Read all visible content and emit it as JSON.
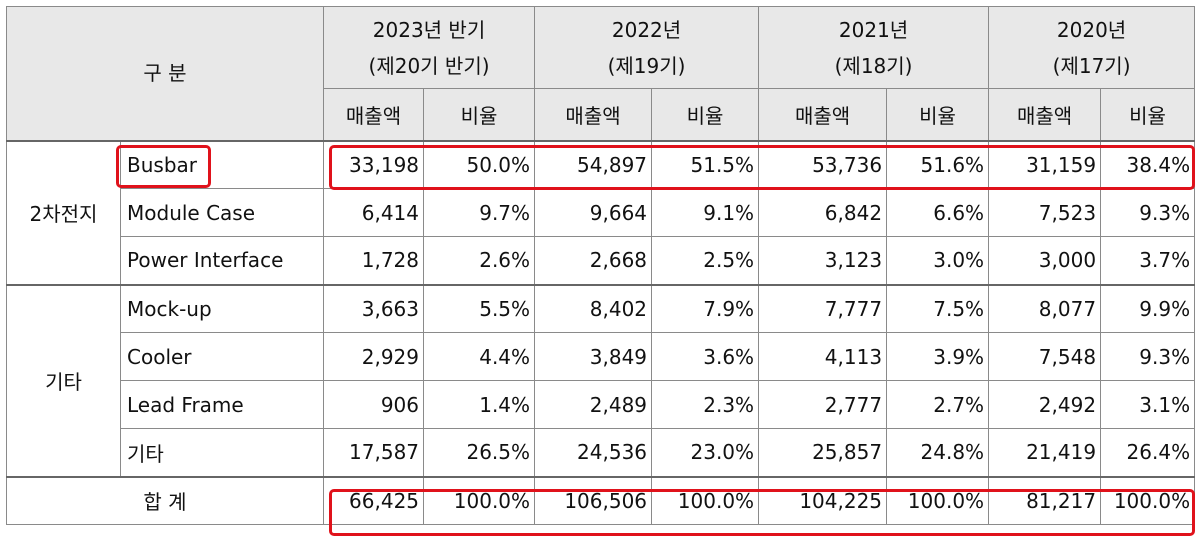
{
  "header": {
    "category_label": "구 분",
    "periods": [
      {
        "line1": "2023년 반기",
        "line2": "(제20기 반기)"
      },
      {
        "line1": "2022년",
        "line2": "(제19기)"
      },
      {
        "line1": "2021년",
        "line2": "(제18기)"
      },
      {
        "line1": "2020년",
        "line2": "(제17기)"
      }
    ],
    "sub": {
      "sales": "매출액",
      "ratio": "비율"
    }
  },
  "groups": [
    {
      "name": "2차전지",
      "rows": [
        {
          "item": "Busbar",
          "values": [
            "33,198",
            "50.0%",
            "54,897",
            "51.5%",
            "53,736",
            "51.6%",
            "31,159",
            "38.4%"
          ]
        },
        {
          "item": "Module Case",
          "values": [
            "6,414",
            "9.7%",
            "9,664",
            "9.1%",
            "6,842",
            "6.6%",
            "7,523",
            "9.3%"
          ]
        },
        {
          "item": "Power Interface",
          "values": [
            "1,728",
            "2.6%",
            "2,668",
            "2.5%",
            "3,123",
            "3.0%",
            "3,000",
            "3.7%"
          ]
        }
      ]
    },
    {
      "name": "기타",
      "rows": [
        {
          "item": "Mock-up",
          "values": [
            "3,663",
            "5.5%",
            "8,402",
            "7.9%",
            "7,777",
            "7.5%",
            "8,077",
            "9.9%"
          ]
        },
        {
          "item": "Cooler",
          "values": [
            "2,929",
            "4.4%",
            "3,849",
            "3.6%",
            "4,113",
            "3.9%",
            "7,548",
            "9.3%"
          ]
        },
        {
          "item": "Lead Frame",
          "values": [
            "906",
            "1.4%",
            "2,489",
            "2.3%",
            "2,777",
            "2.7%",
            "2,492",
            "3.1%"
          ]
        },
        {
          "item": "기타",
          "values": [
            "17,587",
            "26.5%",
            "24,536",
            "23.0%",
            "25,857",
            "24.8%",
            "21,419",
            "26.4%"
          ]
        }
      ]
    }
  ],
  "total": {
    "label": "합 계",
    "values": [
      "66,425",
      "100.0%",
      "106,506",
      "100.0%",
      "104,225",
      "100.0%",
      "81,217",
      "100.0%"
    ]
  },
  "highlight_color": "#e0121b"
}
